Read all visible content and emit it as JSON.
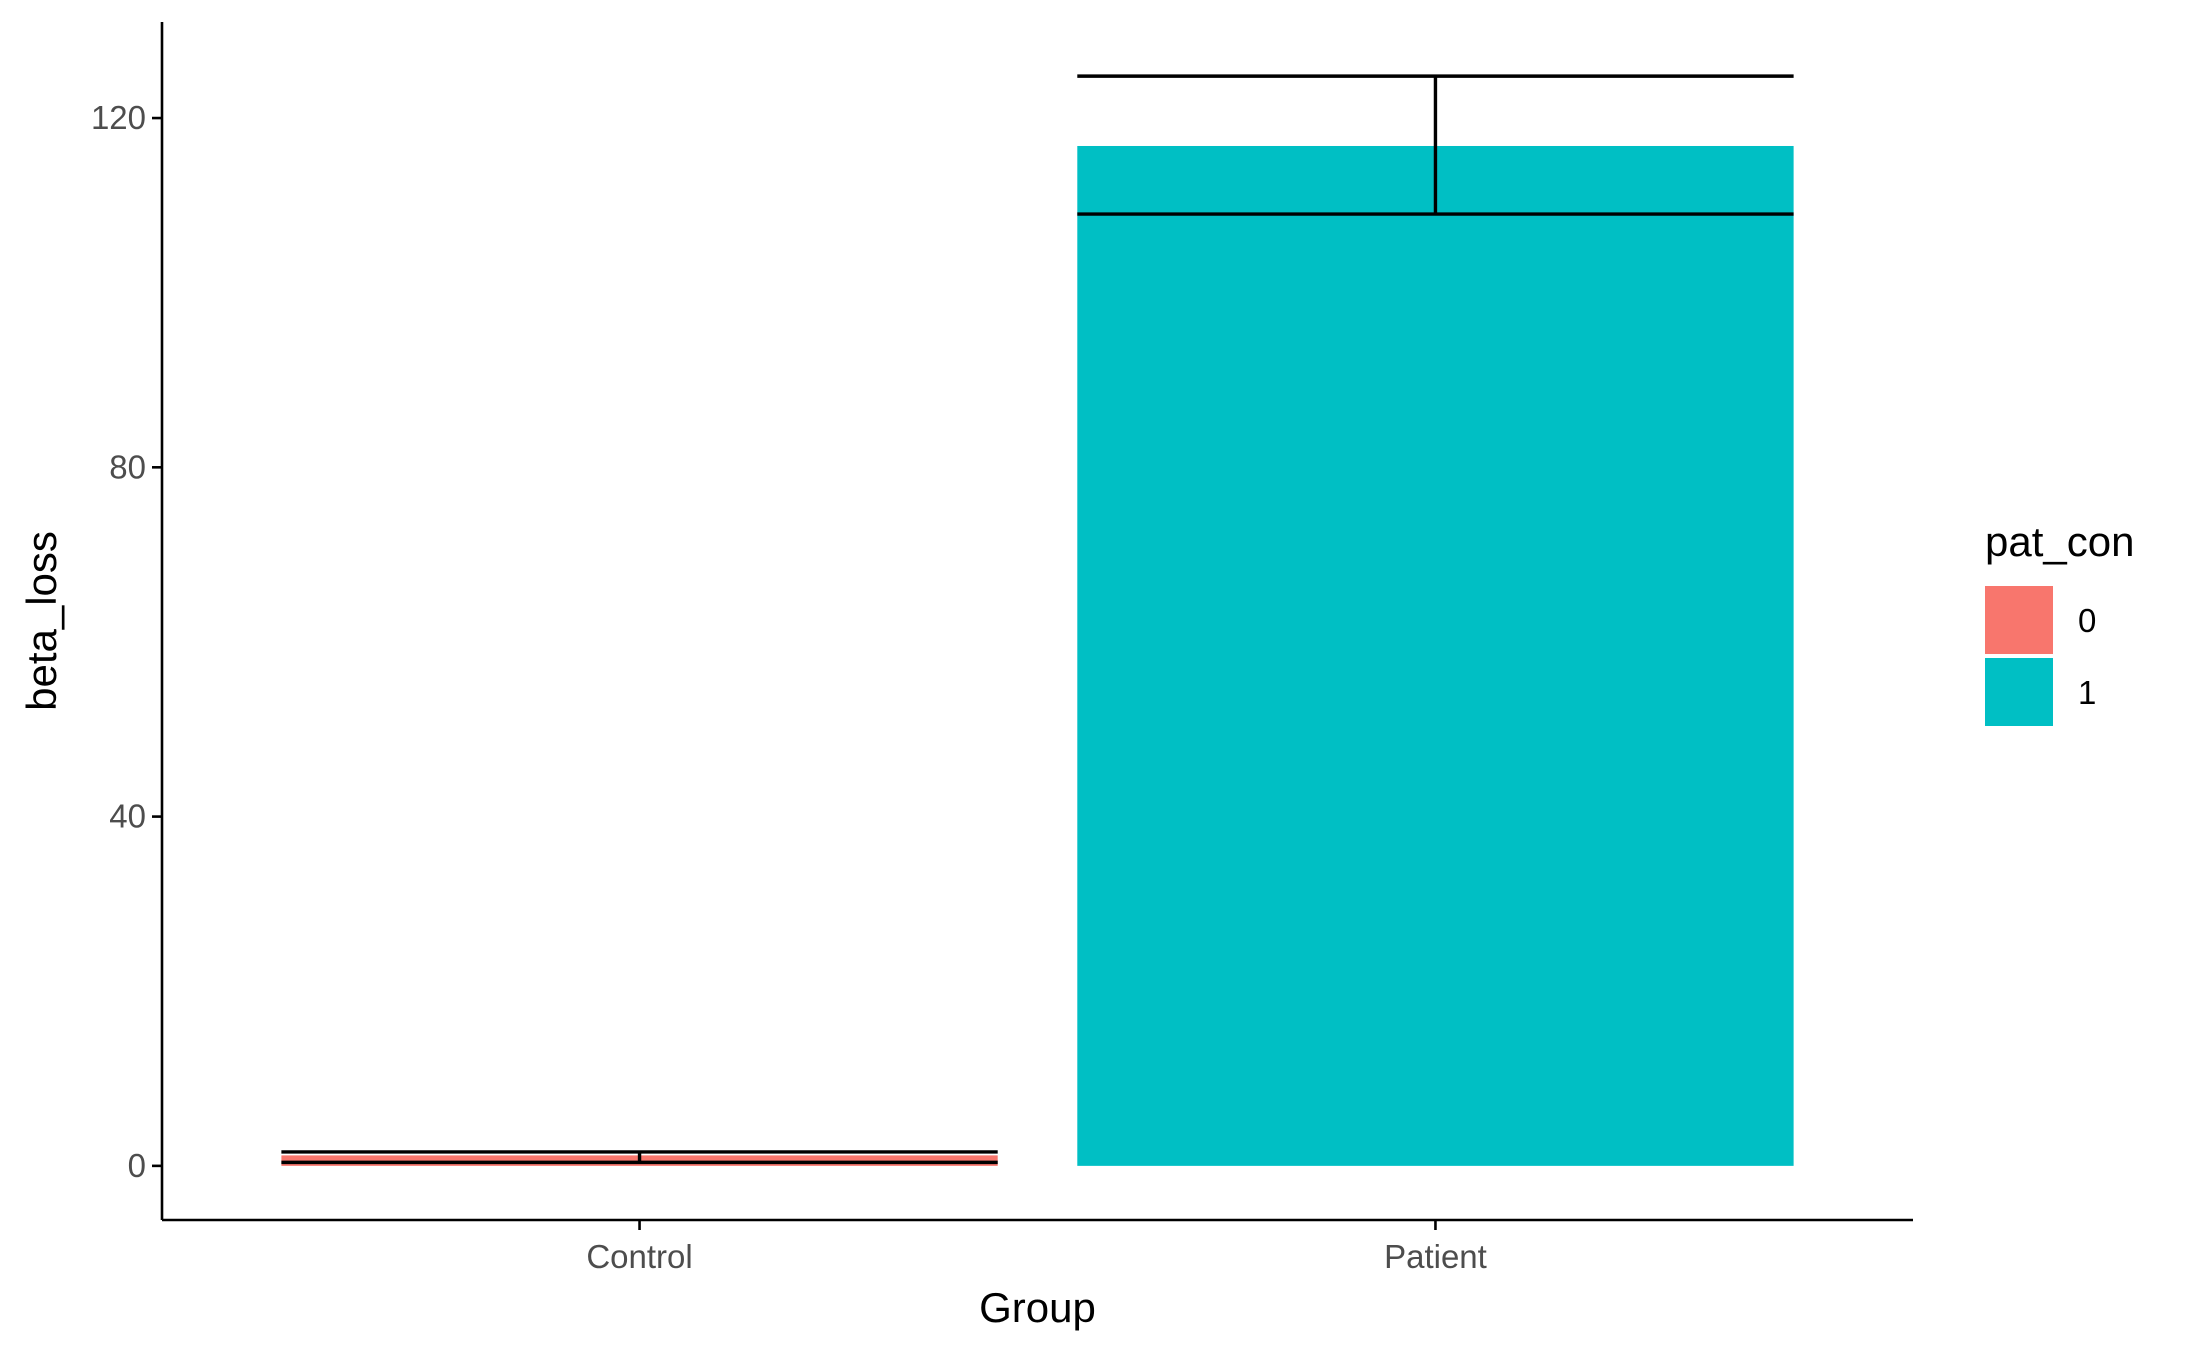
{
  "chart_data": {
    "type": "bar",
    "categories": [
      "Control",
      "Patient"
    ],
    "values": [
      1.2,
      116.8
    ],
    "error_bars": [
      {
        "lower": 0.4,
        "upper": 1.6
      },
      {
        "lower": 109.0,
        "upper": 124.8
      }
    ],
    "colors": [
      "#F8766D",
      "#00BFC4"
    ],
    "xlabel": "Group",
    "ylabel": "beta_loss",
    "ylim": [
      -6.2,
      131
    ],
    "yticks": [
      0,
      40,
      80,
      120
    ],
    "grid": false,
    "legend": {
      "title": "pat_con",
      "placement": "right",
      "entries": [
        {
          "label": "0",
          "color": "#F8766D"
        },
        {
          "label": "1",
          "color": "#00BFC4"
        }
      ]
    }
  }
}
